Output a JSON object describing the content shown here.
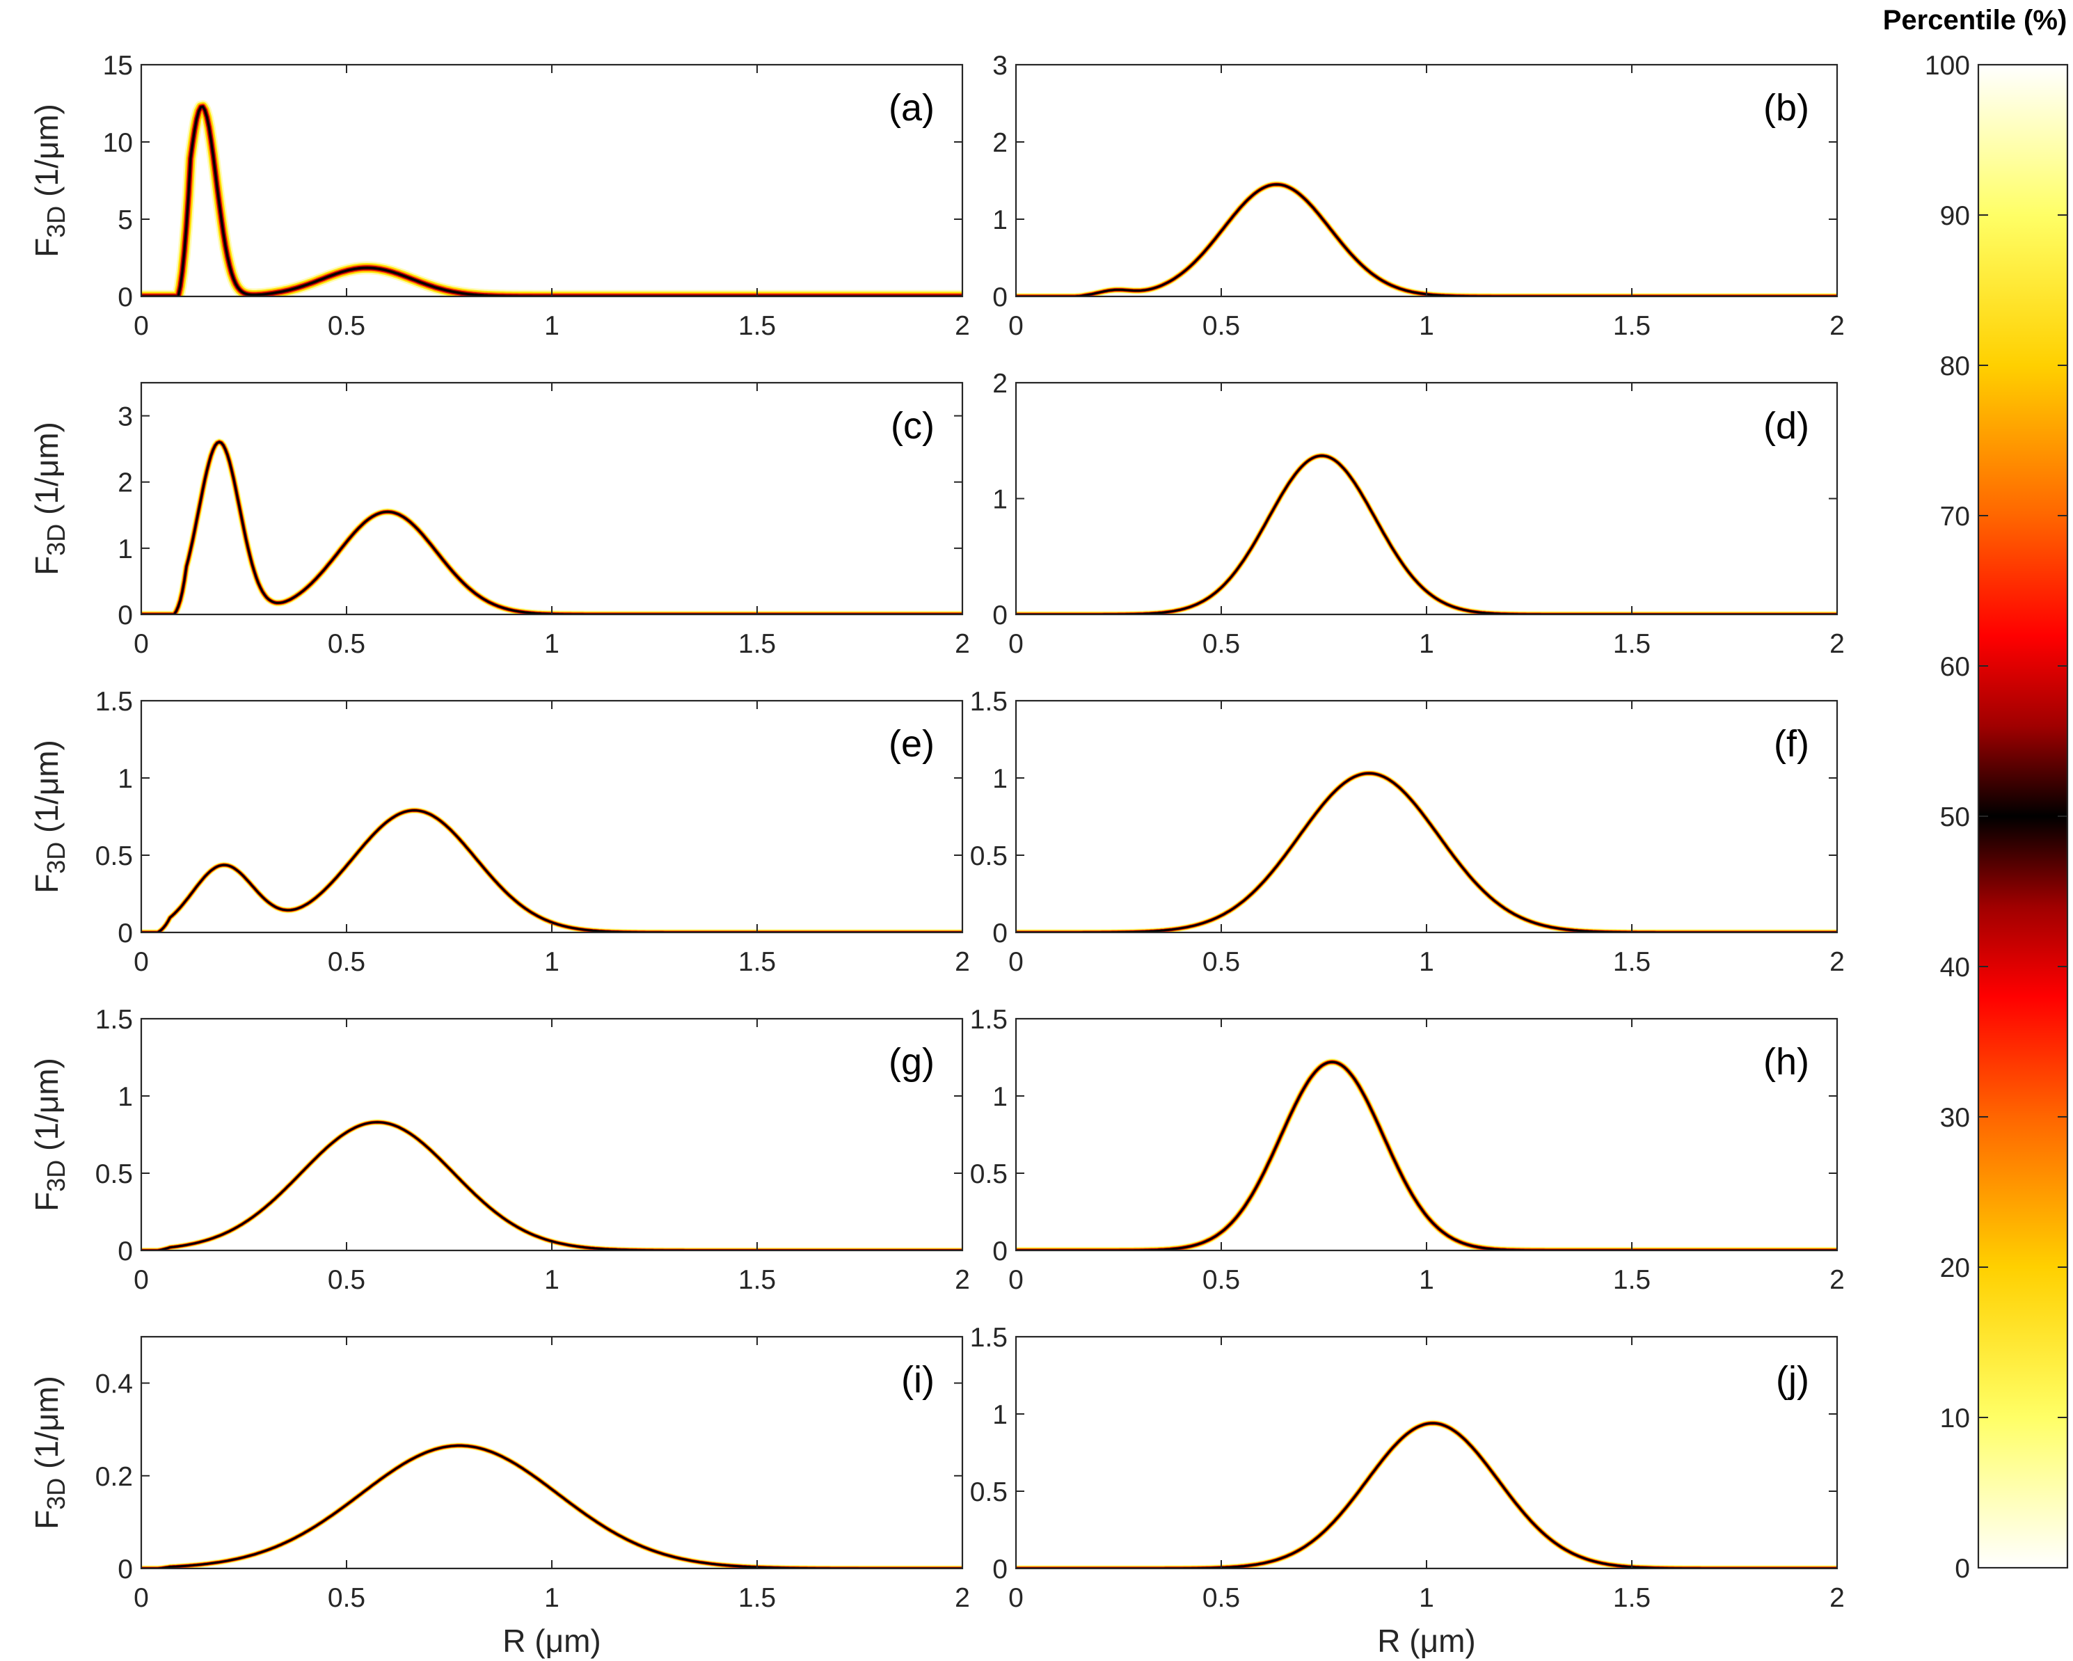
{
  "chart_data": {
    "type": "line",
    "title": "",
    "colorbar": {
      "title": "Percentile (%)",
      "ticks": [
        "0",
        "10",
        "20",
        "30",
        "40",
        "50",
        "60",
        "70",
        "80",
        "90",
        "100"
      ],
      "range": [
        0,
        100
      ],
      "colormap": [
        {
          "stop": 0.0,
          "color": "#ffffff"
        },
        {
          "stop": 0.1,
          "color": "#ffff66"
        },
        {
          "stop": 0.2,
          "color": "#ffd000"
        },
        {
          "stop": 0.3,
          "color": "#ff6600"
        },
        {
          "stop": 0.38,
          "color": "#ff0000"
        },
        {
          "stop": 0.44,
          "color": "#a00000"
        },
        {
          "stop": 0.5,
          "color": "#000000"
        },
        {
          "stop": 0.56,
          "color": "#a00000"
        },
        {
          "stop": 0.62,
          "color": "#ff0000"
        },
        {
          "stop": 0.7,
          "color": "#ff6600"
        },
        {
          "stop": 0.8,
          "color": "#ffd000"
        },
        {
          "stop": 0.9,
          "color": "#ffff66"
        },
        {
          "stop": 1.0,
          "color": "#ffffff"
        }
      ]
    },
    "panels": [
      {
        "label": "(a)",
        "ylabel": "F3D (1/μm)",
        "xlabel": "",
        "xlim": [
          0,
          2
        ],
        "ylim": [
          0,
          15
        ],
        "xticks": [
          "0",
          "0.5",
          "1",
          "1.5",
          "2"
        ],
        "yticks": [
          "0",
          "5",
          "10",
          "15"
        ],
        "components": [
          {
            "mu": 0.148,
            "sigma": 0.035,
            "amp": 12.3
          },
          {
            "mu": 0.55,
            "sigma": 0.11,
            "amp": 1.85
          }
        ],
        "rmin": 0.09,
        "band": 0.35
      },
      {
        "label": "(b)",
        "ylabel": "",
        "xlabel": "",
        "xlim": [
          0,
          2
        ],
        "ylim": [
          0,
          3
        ],
        "xticks": [
          "0",
          "0.5",
          "1",
          "1.5",
          "2"
        ],
        "yticks": [
          "0",
          "1",
          "2",
          "3"
        ],
        "components": [
          {
            "mu": 0.24,
            "sigma": 0.04,
            "amp": 0.07
          },
          {
            "mu": 0.635,
            "sigma": 0.13,
            "amp": 1.45
          }
        ],
        "rmin": 0.14,
        "band": 0.07
      },
      {
        "label": "(c)",
        "ylabel": "F3D (1/μm)",
        "xlabel": "",
        "xlim": [
          0,
          2
        ],
        "ylim": [
          0,
          3.5
        ],
        "xticks": [
          "0",
          "0.5",
          "1",
          "1.5",
          "2"
        ],
        "yticks": [
          "0",
          "1",
          "2",
          "3"
        ],
        "components": [
          {
            "mu": 0.19,
            "sigma": 0.05,
            "amp": 2.6
          },
          {
            "mu": 0.6,
            "sigma": 0.12,
            "amp": 1.55
          }
        ],
        "rmin": 0.08,
        "band": 0.09
      },
      {
        "label": "(d)",
        "ylabel": "",
        "xlabel": "",
        "xlim": [
          0,
          2
        ],
        "ylim": [
          0,
          2
        ],
        "xticks": [
          "0",
          "0.5",
          "1",
          "1.5",
          "2"
        ],
        "yticks": [
          "0",
          "1",
          "2"
        ],
        "components": [
          {
            "mu": 0.745,
            "sigma": 0.13,
            "amp": 1.37
          }
        ],
        "rmin": 0.05,
        "band": 0.04
      },
      {
        "label": "(e)",
        "ylabel": "F3D (1/μm)",
        "xlabel": "",
        "xlim": [
          0,
          2
        ],
        "ylim": [
          0,
          1.5
        ],
        "xticks": [
          "0",
          "0.5",
          "1",
          "1.5",
          "2"
        ],
        "yticks": [
          "0",
          "0.5",
          "1",
          "1.5"
        ],
        "components": [
          {
            "mu": 0.2,
            "sigma": 0.075,
            "amp": 0.43
          },
          {
            "mu": 0.665,
            "sigma": 0.15,
            "amp": 0.79
          }
        ],
        "rmin": 0.04,
        "band": 0.04
      },
      {
        "label": "(f)",
        "ylabel": "",
        "xlabel": "",
        "xlim": [
          0,
          2
        ],
        "ylim": [
          0,
          1.5
        ],
        "xticks": [
          "0",
          "0.5",
          "1",
          "1.5",
          "2"
        ],
        "yticks": [
          "0",
          "0.5",
          "1",
          "1.5"
        ],
        "components": [
          {
            "mu": 0.86,
            "sigma": 0.17,
            "amp": 1.03
          }
        ],
        "rmin": 0.05,
        "band": 0.04
      },
      {
        "label": "(g)",
        "ylabel": "F3D (1/μm)",
        "xlabel": "",
        "xlim": [
          0,
          2
        ],
        "ylim": [
          0,
          1.5
        ],
        "xticks": [
          "0",
          "0.5",
          "1",
          "1.5",
          "2"
        ],
        "yticks": [
          "0",
          "0.5",
          "1",
          "1.5"
        ],
        "components": [
          {
            "mu": 0.575,
            "sigma": 0.185,
            "amp": 0.83
          }
        ],
        "rmin": 0.04,
        "band": 0.025
      },
      {
        "label": "(h)",
        "ylabel": "",
        "xlabel": "",
        "xlim": [
          0,
          2
        ],
        "ylim": [
          0,
          1.5
        ],
        "xticks": [
          "0",
          "0.5",
          "1",
          "1.5",
          "2"
        ],
        "yticks": [
          "0",
          "0.5",
          "1",
          "1.5"
        ],
        "components": [
          {
            "mu": 0.77,
            "sigma": 0.125,
            "amp": 1.22
          }
        ],
        "rmin": 0.05,
        "band": 0.08
      },
      {
        "label": "(i)",
        "ylabel": "F3D (1/μm)",
        "xlabel": "R (μm)",
        "xlim": [
          0,
          2
        ],
        "ylim": [
          0,
          0.5
        ],
        "xticks": [
          "0",
          "0.5",
          "1",
          "1.5",
          "2"
        ],
        "yticks": [
          "0",
          "0.2",
          "0.4"
        ],
        "components": [
          {
            "mu": 0.775,
            "sigma": 0.24,
            "amp": 0.265
          }
        ],
        "rmin": 0.04,
        "band": 0.03
      },
      {
        "label": "(j)",
        "ylabel": "",
        "xlabel": "R (μm)",
        "xlim": [
          0,
          2
        ],
        "ylim": [
          0,
          1.5
        ],
        "xticks": [
          "0",
          "0.5",
          "1",
          "1.5",
          "2"
        ],
        "yticks": [
          "0",
          "0.5",
          "1",
          "1.5"
        ],
        "components": [
          {
            "mu": 1.015,
            "sigma": 0.16,
            "amp": 0.94
          }
        ],
        "rmin": 0.05,
        "band": 0.05
      }
    ]
  }
}
